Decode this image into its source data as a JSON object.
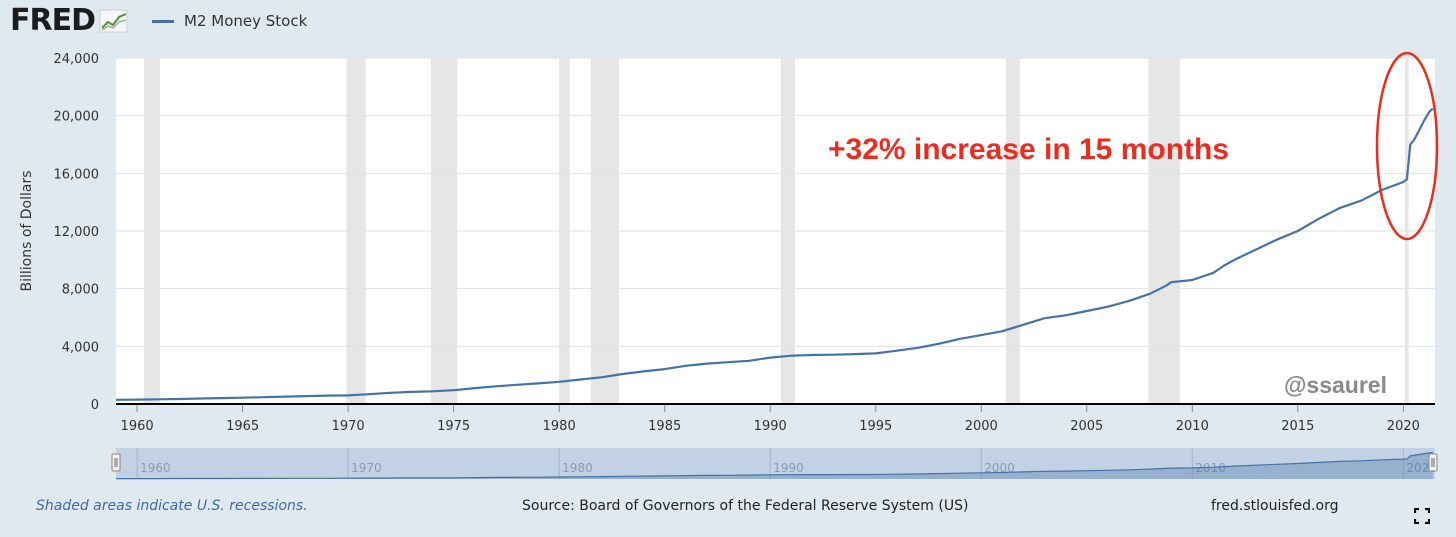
{
  "header": {
    "logo_text": "FRED",
    "logo_icon": "fred-chart-icon",
    "legend_label": "M2 Money Stock"
  },
  "colors": {
    "background": "#e1e9f0",
    "plot_background": "#ffffff",
    "line": "#4572a7",
    "recession_shade": "#e6e6e6",
    "annotation": "#ee2b1f",
    "watermark": "#8a8a8a",
    "navigator_fill": "#b9cbe2"
  },
  "footer": {
    "recession_note": "Shaded areas indicate U.S. recessions.",
    "source": "Source: Board of Governors of the Federal Reserve System (US)",
    "site": "fred.stlouisfed.org",
    "fullscreen_icon": "fullscreen-icon"
  },
  "chart_data": {
    "type": "line",
    "title": "M2 Money Stock",
    "ylabel": "Billions of Dollars",
    "xlabel": "",
    "xlim": [
      1959,
      2021.5
    ],
    "ylim": [
      0,
      24000
    ],
    "grid": true,
    "legend": "top-left",
    "x_ticks": [
      "1960",
      "1965",
      "1970",
      "1975",
      "1980",
      "1985",
      "1990",
      "1995",
      "2000",
      "2005",
      "2010",
      "2015",
      "2020"
    ],
    "y_ticks": [
      "0",
      "4,000",
      "8,000",
      "12,000",
      "16,000",
      "20,000",
      "24,000"
    ],
    "navigator_ticks": [
      "1960",
      "1970",
      "1980",
      "1990",
      "2000",
      "2010",
      "2020"
    ],
    "series": [
      {
        "name": "M2 Money Stock",
        "x": [
          1959,
          1960,
          1961,
          1962,
          1963,
          1964,
          1965,
          1966,
          1967,
          1968,
          1969,
          1970,
          1971,
          1972,
          1973,
          1974,
          1975,
          1976,
          1977,
          1978,
          1979,
          1980,
          1981,
          1982,
          1983,
          1984,
          1985,
          1986,
          1987,
          1988,
          1989,
          1990,
          1991,
          1992,
          1993,
          1994,
          1995,
          1996,
          1997,
          1998,
          1999,
          2000,
          2001,
          2002,
          2003,
          2004,
          2005,
          2006,
          2007,
          2008,
          2008.75,
          2009,
          2010,
          2011,
          2011.5,
          2012,
          2013,
          2014,
          2015,
          2016,
          2017,
          2018,
          2019,
          2020,
          2020.17,
          2020.33,
          2020.5,
          2020.75,
          2021,
          2021.25,
          2021.4
        ],
        "values": [
          290,
          305,
          325,
          350,
          380,
          410,
          440,
          470,
          510,
          550,
          580,
          600,
          680,
          780,
          840,
          880,
          960,
          1100,
          1230,
          1330,
          1430,
          1540,
          1700,
          1850,
          2080,
          2260,
          2420,
          2650,
          2800,
          2900,
          3000,
          3220,
          3350,
          3400,
          3420,
          3460,
          3510,
          3700,
          3900,
          4180,
          4520,
          4780,
          5050,
          5500,
          5950,
          6150,
          6450,
          6750,
          7150,
          7650,
          8200,
          8450,
          8600,
          9100,
          9600,
          10000,
          10700,
          11400,
          12000,
          12850,
          13600,
          14100,
          14850,
          15400,
          15600,
          18000,
          18300,
          19000,
          19700,
          20300,
          20500
        ]
      }
    ],
    "recessions": [
      [
        1960.33,
        1961.08
      ],
      [
        1969.92,
        1970.83
      ],
      [
        1973.92,
        1975.17
      ],
      [
        1980.0,
        1980.5
      ],
      [
        1981.5,
        1982.83
      ],
      [
        1990.5,
        1991.17
      ],
      [
        2001.17,
        2001.83
      ],
      [
        2007.92,
        2009.42
      ],
      [
        2020.08,
        2020.25
      ]
    ],
    "annotations": [
      {
        "text": "+32% increase in 15 months"
      },
      {
        "text": "@ssaurel"
      }
    ]
  }
}
